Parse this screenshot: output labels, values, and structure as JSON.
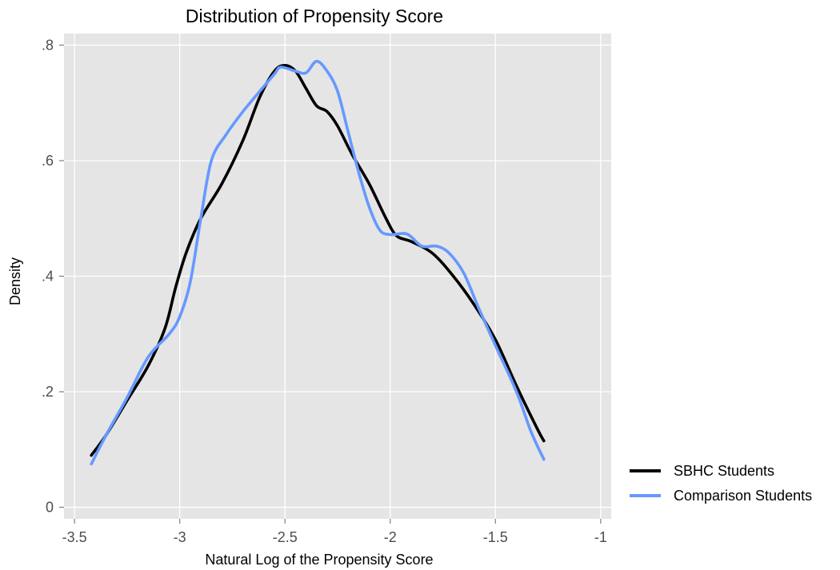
{
  "chart_data": {
    "type": "line",
    "title": "Distribution of Propensity Score",
    "xlabel": "Natural Log of the Propensity Score",
    "ylabel": "Density",
    "xlim": [
      -3.55,
      -0.95
    ],
    "ylim": [
      -0.02,
      0.82
    ],
    "xticks": [
      -3.5,
      -3,
      -2.5,
      -2,
      -1.5,
      -1
    ],
    "xtick_labels": [
      "-3.5",
      "-3",
      "-2.5",
      "-2",
      "-1.5",
      "-1"
    ],
    "yticks": [
      0,
      0.2,
      0.4,
      0.6,
      0.8
    ],
    "ytick_labels": [
      "0",
      ".2",
      ".4",
      ".6",
      ".8"
    ],
    "grid": true,
    "panel_background": "#e5e5e5",
    "legend_position": "right",
    "series": [
      {
        "name": "SBHC Students",
        "color": "#000000",
        "points": [
          [
            -3.42,
            0.09
          ],
          [
            -3.35,
            0.125
          ],
          [
            -3.25,
            0.185
          ],
          [
            -3.15,
            0.245
          ],
          [
            -3.07,
            0.31
          ],
          [
            -3.02,
            0.38
          ],
          [
            -2.97,
            0.44
          ],
          [
            -2.9,
            0.5
          ],
          [
            -2.8,
            0.56
          ],
          [
            -2.7,
            0.635
          ],
          [
            -2.62,
            0.71
          ],
          [
            -2.55,
            0.755
          ],
          [
            -2.5,
            0.765
          ],
          [
            -2.45,
            0.755
          ],
          [
            -2.4,
            0.725
          ],
          [
            -2.35,
            0.695
          ],
          [
            -2.3,
            0.685
          ],
          [
            -2.25,
            0.66
          ],
          [
            -2.18,
            0.61
          ],
          [
            -2.1,
            0.56
          ],
          [
            -2.02,
            0.5
          ],
          [
            -1.97,
            0.47
          ],
          [
            -1.9,
            0.46
          ],
          [
            -1.8,
            0.44
          ],
          [
            -1.7,
            0.4
          ],
          [
            -1.6,
            0.35
          ],
          [
            -1.5,
            0.29
          ],
          [
            -1.4,
            0.21
          ],
          [
            -1.3,
            0.135
          ],
          [
            -1.27,
            0.115
          ]
        ]
      },
      {
        "name": "Comparison Students",
        "color": "#6699ff",
        "points": [
          [
            -3.42,
            0.075
          ],
          [
            -3.35,
            0.125
          ],
          [
            -3.25,
            0.19
          ],
          [
            -3.15,
            0.26
          ],
          [
            -3.05,
            0.3
          ],
          [
            -3.0,
            0.33
          ],
          [
            -2.95,
            0.39
          ],
          [
            -2.9,
            0.5
          ],
          [
            -2.85,
            0.6
          ],
          [
            -2.78,
            0.645
          ],
          [
            -2.7,
            0.685
          ],
          [
            -2.62,
            0.72
          ],
          [
            -2.55,
            0.75
          ],
          [
            -2.52,
            0.762
          ],
          [
            -2.45,
            0.755
          ],
          [
            -2.4,
            0.752
          ],
          [
            -2.35,
            0.772
          ],
          [
            -2.3,
            0.755
          ],
          [
            -2.25,
            0.72
          ],
          [
            -2.2,
            0.65
          ],
          [
            -2.15,
            0.58
          ],
          [
            -2.1,
            0.52
          ],
          [
            -2.05,
            0.48
          ],
          [
            -2.0,
            0.472
          ],
          [
            -1.92,
            0.473
          ],
          [
            -1.85,
            0.452
          ],
          [
            -1.78,
            0.452
          ],
          [
            -1.72,
            0.44
          ],
          [
            -1.65,
            0.405
          ],
          [
            -1.58,
            0.345
          ],
          [
            -1.5,
            0.28
          ],
          [
            -1.4,
            0.2
          ],
          [
            -1.33,
            0.13
          ],
          [
            -1.27,
            0.083
          ]
        ]
      }
    ]
  }
}
